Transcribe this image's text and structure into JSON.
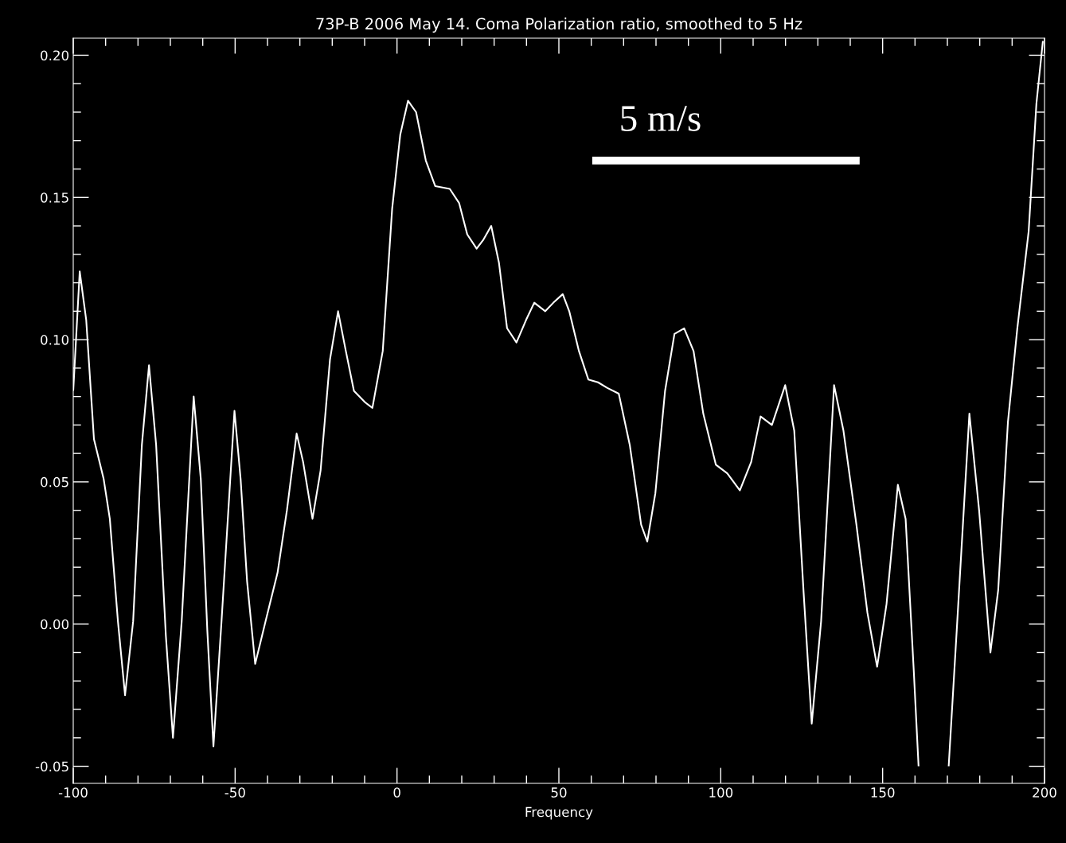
{
  "chart_data": {
    "type": "line",
    "title": "73P-B 2006 May 14. Coma Polarization ratio, smoothed to 5 Hz",
    "xlabel": "Frequency",
    "xlim": [
      -100,
      200
    ],
    "ylim": [
      -0.056,
      0.206
    ],
    "xticks": [
      -100,
      -50,
      0,
      50,
      100,
      150,
      200
    ],
    "yticks": [
      {
        "value": -0.05,
        "label": "-0.05"
      },
      {
        "value": 0.0,
        "label": "0.00"
      },
      {
        "value": 0.05,
        "label": "0.05"
      },
      {
        "value": 0.1,
        "label": "0.10"
      },
      {
        "value": 0.15,
        "label": "0.15"
      },
      {
        "value": 0.2,
        "label": "0.20"
      }
    ],
    "legend": false,
    "marker": "none",
    "line_style": "solid",
    "annotations": [
      "5 m/s"
    ],
    "series": [
      {
        "color": "#ffffff",
        "x": [
          -100,
          -98,
          -96,
          -93.6,
          -90.6,
          -88.7,
          -86.2,
          -84,
          -81.5,
          -78.8,
          -76.6,
          -74.4,
          -71.4,
          -69.2,
          -66.5,
          -62.8,
          -60.6,
          -58.6,
          -56.7,
          -54.2,
          -50.2,
          -48.3,
          -46.3,
          -43.8,
          -40.6,
          -36.9,
          -34,
          -31,
          -29,
          -26.1,
          -23.6,
          -20.7,
          -18.2,
          -15.8,
          -13.3,
          -9.9,
          -7.6,
          -4.4,
          -1.5,
          1,
          3.4,
          5.9,
          8.9,
          11.8,
          16.3,
          19.2,
          21.7,
          24.6,
          26.6,
          29.1,
          31.5,
          34,
          36.9,
          39.9,
          42.4,
          45.8,
          48.3,
          51.2,
          53.2,
          56.2,
          59.1,
          62.1,
          65,
          68.5,
          71.9,
          75.4,
          77.3,
          79.8,
          82.8,
          85.7,
          88.7,
          91.6,
          94.6,
          98.5,
          102,
          105.9,
          109.4,
          112.3,
          115.8,
          119.9,
          122.7,
          125.6,
          128.1,
          131,
          135,
          137.9,
          141.9,
          145.3,
          148.3,
          151.2,
          154.7,
          157.1,
          159.6,
          161.1,
          165,
          170.4,
          172.9,
          176.8,
          179.8,
          183.3,
          185.7,
          188.7,
          191.6,
          195.1,
          197.5,
          199.5
        ],
        "values": [
          0.082,
          0.124,
          0.107,
          0.065,
          0.051,
          0.037,
          0.001,
          -0.025,
          0.001,
          0.063,
          0.091,
          0.063,
          -0.004,
          -0.04,
          0.001,
          0.08,
          0.051,
          -0.002,
          -0.043,
          0.001,
          0.075,
          0.051,
          0.015,
          -0.014,
          0.001,
          0.018,
          0.04,
          0.067,
          0.057,
          0.037,
          0.054,
          0.093,
          0.11,
          0.096,
          0.082,
          0.078,
          0.076,
          0.096,
          0.146,
          0.172,
          0.184,
          0.18,
          0.163,
          0.154,
          0.153,
          0.148,
          0.137,
          0.132,
          0.135,
          0.14,
          0.127,
          0.104,
          0.099,
          0.107,
          0.113,
          0.11,
          0.113,
          0.116,
          0.11,
          0.096,
          0.086,
          0.085,
          0.083,
          0.081,
          0.063,
          0.035,
          0.029,
          0.046,
          0.082,
          0.102,
          0.104,
          0.096,
          0.074,
          0.056,
          0.053,
          0.047,
          0.057,
          0.073,
          0.07,
          0.084,
          0.068,
          0.011,
          -0.035,
          0.001,
          0.084,
          0.068,
          0.035,
          0.004,
          -0.015,
          0.007,
          0.049,
          0.037,
          -0.016,
          -0.05,
          null,
          -0.05,
          -0.002,
          0.074,
          0.04,
          -0.01,
          0.012,
          0.071,
          0.104,
          0.138,
          0.183,
          0.205
        ]
      },
      {
        "color": "#ffffff",
        "x": [
          60.3,
          142.9
        ],
        "values": [
          0.163,
          0.163
        ]
      }
    ]
  }
}
